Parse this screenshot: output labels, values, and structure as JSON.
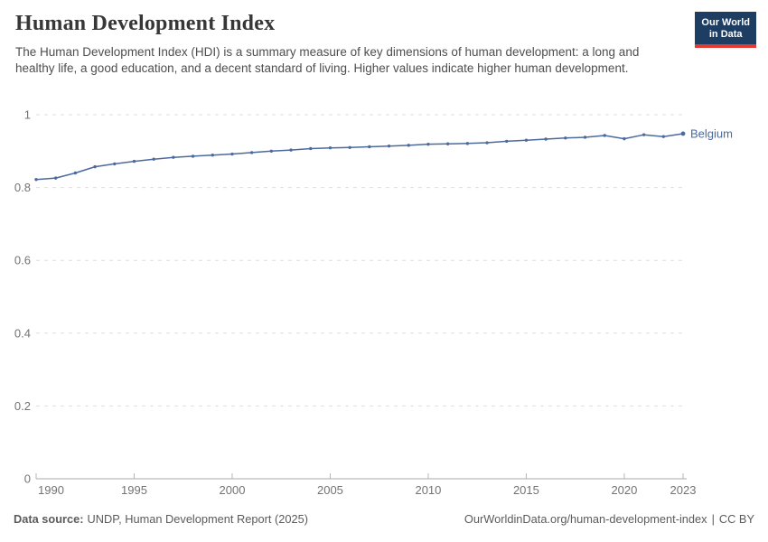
{
  "header": {
    "title": "Human Development Index",
    "subtitle": "The Human Development Index (HDI) is a summary measure of key dimensions of human development: a long and healthy life, a good education, and a decent standard of living. Higher values indicate higher human development.",
    "logo": {
      "line1": "Our World",
      "line2": "in Data"
    }
  },
  "chart_data": {
    "type": "line",
    "title": "Human Development Index",
    "xlabel": "",
    "ylabel": "",
    "xlim": [
      1990,
      2023
    ],
    "ylim": [
      0,
      1
    ],
    "grid": "horizontal-dashed",
    "legend": "end-of-line-label",
    "xticks": [
      1990,
      1995,
      2000,
      2005,
      2010,
      2015,
      2020,
      2023
    ],
    "yticks": [
      {
        "v": 0,
        "label": "0"
      },
      {
        "v": 0.2,
        "label": "0.2"
      },
      {
        "v": 0.4,
        "label": "0.4"
      },
      {
        "v": 0.6,
        "label": "0.6"
      },
      {
        "v": 0.8,
        "label": "0.8"
      },
      {
        "v": 1,
        "label": "1"
      }
    ],
    "series": [
      {
        "name": "Belgium",
        "color": "#4C6A9C",
        "x": [
          1990,
          1991,
          1992,
          1993,
          1994,
          1995,
          1996,
          1997,
          1998,
          1999,
          2000,
          2001,
          2002,
          2003,
          2004,
          2005,
          2006,
          2007,
          2008,
          2009,
          2010,
          2011,
          2012,
          2013,
          2014,
          2015,
          2016,
          2017,
          2018,
          2019,
          2020,
          2021,
          2022,
          2023
        ],
        "values": [
          0.822,
          0.826,
          0.84,
          0.857,
          0.865,
          0.872,
          0.878,
          0.883,
          0.886,
          0.889,
          0.892,
          0.896,
          0.9,
          0.903,
          0.907,
          0.909,
          0.91,
          0.912,
          0.914,
          0.916,
          0.919,
          0.92,
          0.921,
          0.923,
          0.927,
          0.93,
          0.933,
          0.936,
          0.938,
          0.943,
          0.934,
          0.945,
          0.94,
          0.948
        ]
      }
    ]
  },
  "footer": {
    "source_label": "Data source:",
    "source_text": "UNDP, Human Development Report (2025)",
    "url": "OurWorldinData.org/human-development-index",
    "separator": "|",
    "license": "CC BY"
  },
  "colors": {
    "line": "#4C6A9C",
    "grid": "#dedede",
    "axis": "#a8a8a8",
    "tick": "#b5b5b5",
    "tick_label": "#737373",
    "series_label": "#4C6A9C"
  }
}
